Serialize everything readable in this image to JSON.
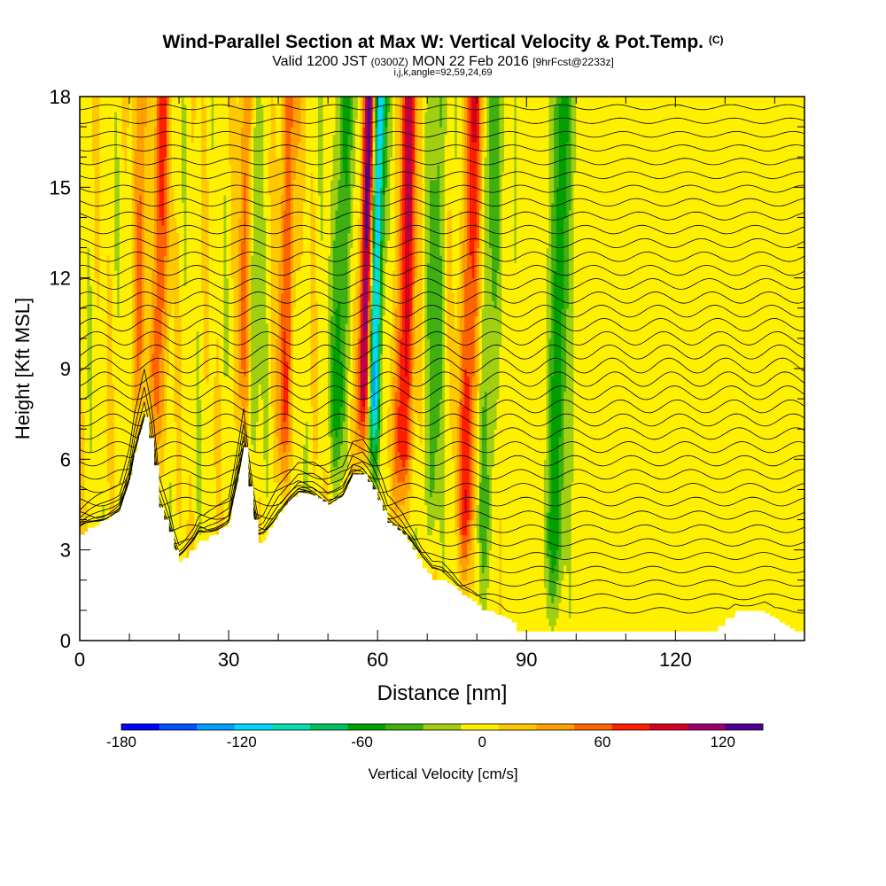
{
  "header": {
    "title": "Wind-Parallel Section at Max W: Vertical Velocity & Pot.Temp.",
    "copyright": "(C)",
    "valid_prefix": "Valid 1200 JST",
    "valid_utc": "(0300Z)",
    "valid_date": "MON 22 Feb 2016",
    "forecast": "[9hrFcst@2233z]",
    "indices": "i,j,k,angle=92,59,24,69"
  },
  "chart_data": {
    "type": "heatmap",
    "title": "Wind-Parallel Section at Max W: Vertical Velocity & Pot.Temp.",
    "xlabel": "Distance [nm]",
    "ylabel": "Height [Kft MSL]",
    "xlim": [
      0,
      146
    ],
    "ylim": [
      0,
      18
    ],
    "x_ticks": [
      "0",
      "30",
      "60",
      "90",
      "120"
    ],
    "y_ticks": [
      "0",
      "3",
      "6",
      "9",
      "12",
      "15",
      "18"
    ],
    "terrain": {
      "x": [
        0,
        4,
        8,
        10,
        11,
        13,
        14,
        15,
        16,
        18,
        19,
        20,
        21,
        23,
        24,
        25,
        27,
        30,
        31,
        32,
        33,
        34,
        35,
        36,
        37,
        38,
        40,
        42,
        44,
        47,
        50,
        53,
        55,
        57,
        59,
        61,
        62,
        63,
        65,
        67,
        69,
        71,
        73,
        75,
        77,
        79,
        81,
        83,
        85,
        87,
        88,
        90,
        100,
        110,
        120,
        128,
        130,
        132,
        138,
        141,
        144,
        146
      ],
      "height_kft": [
        3.5,
        3.9,
        4.3,
        5.3,
        6.2,
        7.4,
        6.7,
        5.8,
        4.4,
        3.6,
        3.0,
        2.6,
        2.7,
        3.0,
        3.3,
        3.3,
        3.5,
        3.9,
        4.7,
        5.5,
        6.4,
        5.1,
        4.0,
        3.2,
        3.3,
        3.6,
        4.2,
        4.6,
        4.9,
        4.8,
        4.5,
        4.8,
        5.5,
        5.5,
        5.0,
        4.3,
        3.9,
        3.8,
        3.5,
        3.0,
        2.4,
        2.0,
        2.0,
        1.8,
        1.5,
        1.3,
        1.0,
        0.9,
        0.8,
        0.6,
        0.3,
        0.3,
        0.3,
        0.3,
        0.3,
        0.3,
        0.6,
        0.9,
        0.9,
        0.6,
        0.3,
        0.3
      ]
    },
    "colorbar": {
      "label": "Vertical Velocity [cm/s]",
      "tick_labels": [
        "-180",
        "-120",
        "-60",
        "0",
        "60",
        "120"
      ],
      "tick_values": [
        -180,
        -120,
        -60,
        0,
        60,
        120
      ],
      "range": [
        -180,
        140
      ],
      "step": 20,
      "colors": [
        "#0000ff",
        "#0050ff",
        "#00a0ff",
        "#00d8ff",
        "#00e0b0",
        "#00c060",
        "#00a000",
        "#40b010",
        "#a0d010",
        "#fff000",
        "#ffc800",
        "#ffa000",
        "#ff6400",
        "#ff1e00",
        "#d80020",
        "#a0006a",
        "#500090"
      ]
    },
    "updraft_plumes": [
      {
        "x_nm": 12,
        "peak_w_cm_s": 80
      },
      {
        "x_nm": 15,
        "peak_w_cm_s": 80
      },
      {
        "x_nm": 33,
        "peak_w_cm_s": 80
      },
      {
        "x_nm": 41,
        "peak_w_cm_s": 60
      },
      {
        "x_nm": 57,
        "peak_w_cm_s": 140
      },
      {
        "x_nm": 65,
        "peak_w_cm_s": 100
      },
      {
        "x_nm": 78,
        "peak_w_cm_s": 80
      }
    ],
    "downdraft_plumes": [
      {
        "x_nm": 13,
        "peak_w_cm_s": -60
      },
      {
        "x_nm": 34,
        "peak_w_cm_s": -60
      },
      {
        "x_nm": 52,
        "peak_w_cm_s": -60
      },
      {
        "x_nm": 59,
        "peak_w_cm_s": -140
      },
      {
        "x_nm": 71,
        "peak_w_cm_s": -40
      },
      {
        "x_nm": 82,
        "peak_w_cm_s": -40
      },
      {
        "x_nm": 96,
        "peak_w_cm_s": -60
      }
    ]
  }
}
